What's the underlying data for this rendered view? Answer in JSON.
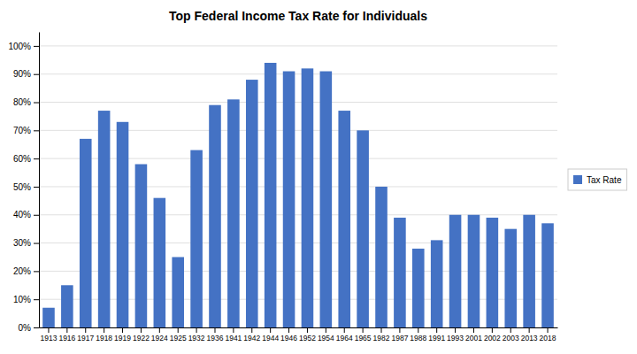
{
  "chart_data": {
    "type": "bar",
    "title": "Top Federal Income Tax Rate for Individuals",
    "categories": [
      "1913",
      "1916",
      "1917",
      "1918",
      "1919",
      "1922",
      "1924",
      "1925",
      "1932",
      "1936",
      "1941",
      "1942",
      "1944",
      "1946",
      "1952",
      "1954",
      "1964",
      "1965",
      "1982",
      "1987",
      "1988",
      "1991",
      "1993",
      "2001",
      "2002",
      "2003",
      "2013",
      "2018"
    ],
    "series": [
      {
        "name": "Tax Rate",
        "color": "#4472C4",
        "values": [
          7,
          15,
          67,
          77,
          73,
          58,
          46,
          25,
          63,
          79,
          81,
          88,
          94,
          91,
          92,
          91,
          77,
          70,
          50,
          39,
          28,
          31,
          40,
          40,
          39,
          35,
          40,
          37
        ]
      }
    ],
    "ylim": [
      0,
      105
    ],
    "yticks": [
      {
        "value": 0,
        "label": "0%"
      },
      {
        "value": 10,
        "label": "10%"
      },
      {
        "value": 20,
        "label": "20%"
      },
      {
        "value": 30,
        "label": "30%"
      },
      {
        "value": 40,
        "label": "40%"
      },
      {
        "value": 50,
        "label": "50%"
      },
      {
        "value": 60,
        "label": "60%"
      },
      {
        "value": 70,
        "label": "70%"
      },
      {
        "value": 80,
        "label": "80%"
      },
      {
        "value": 90,
        "label": "90%"
      },
      {
        "value": 100,
        "label": "100%"
      }
    ],
    "grid": true,
    "legend": "right"
  }
}
